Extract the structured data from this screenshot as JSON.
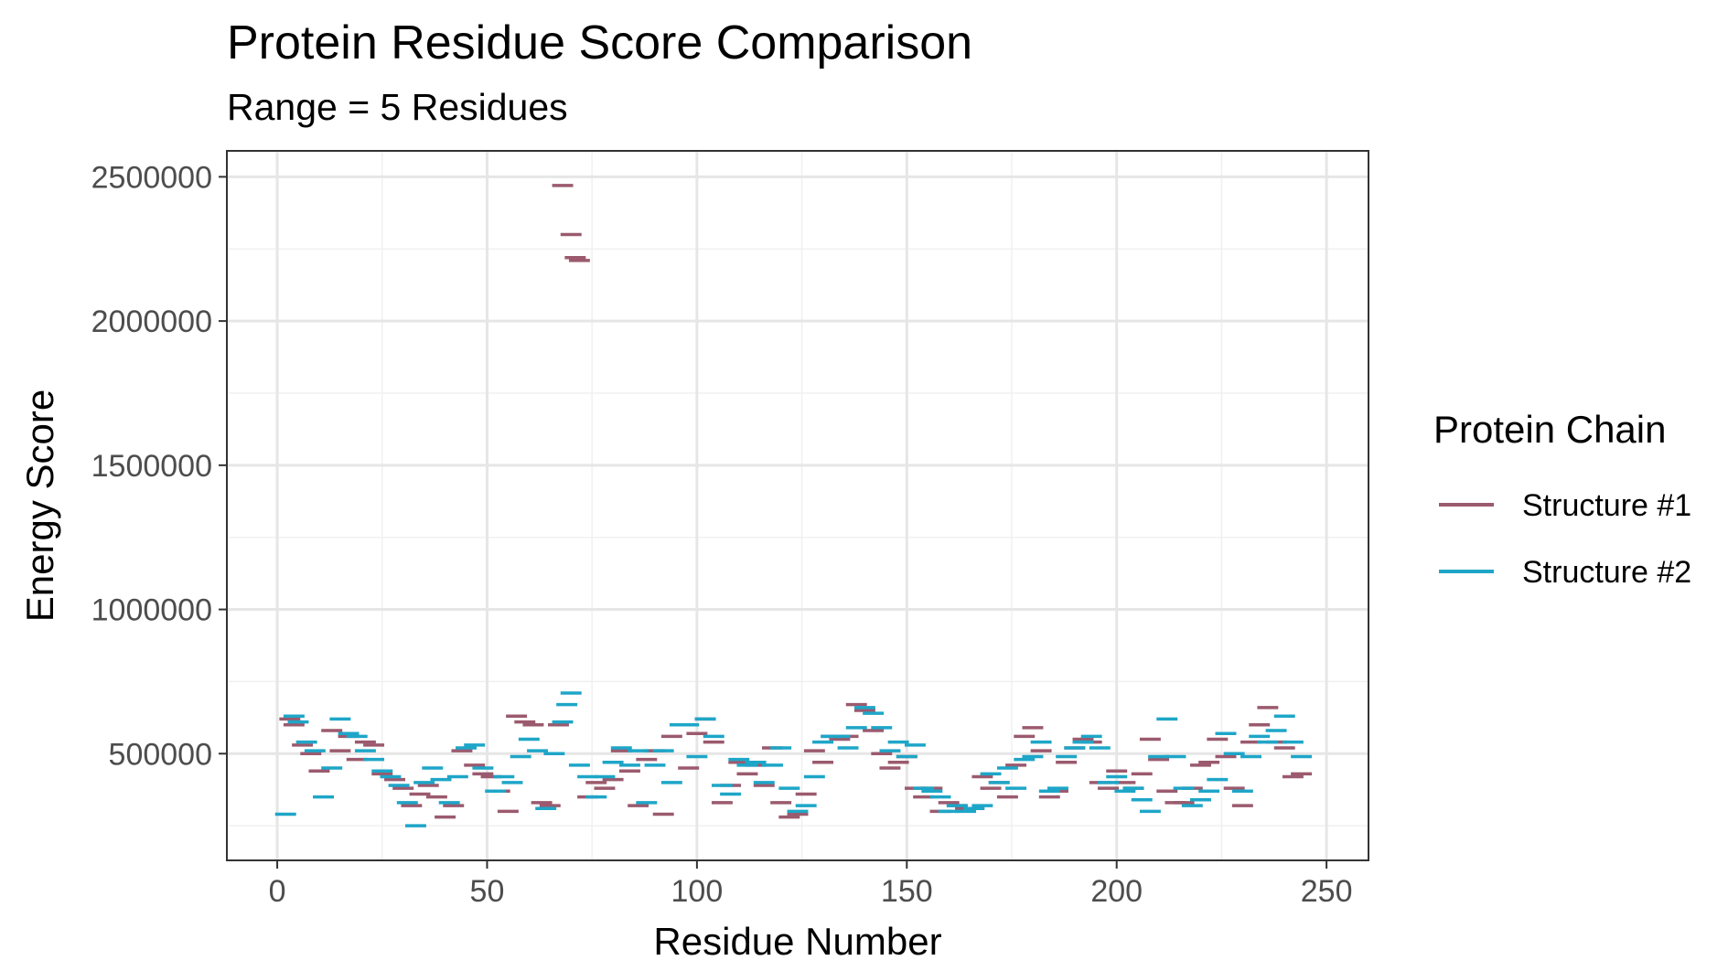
{
  "chart_data": {
    "type": "scatter",
    "title": "Protein Residue Score Comparison",
    "subtitle": "Range = 5 Residues",
    "xlabel": "Residue Number",
    "ylabel": "Energy Score",
    "xlim": [
      -12,
      260
    ],
    "ylim": [
      130000,
      2590000
    ],
    "x_ticks": [
      0,
      50,
      100,
      150,
      200,
      250
    ],
    "x_tick_labels": [
      "0",
      "50",
      "100",
      "150",
      "200",
      "250"
    ],
    "y_ticks": [
      500000,
      1000000,
      1500000,
      2000000,
      2500000
    ],
    "y_tick_labels": [
      "500000",
      "1000000",
      "1500000",
      "2000000",
      "2500000"
    ],
    "grid": true,
    "legend_title": "Protein Chain",
    "legend_position": "right",
    "mark_width_residues": 5,
    "series": [
      {
        "name": "Structure #1",
        "color": "#9b5a6e",
        "x": [
          3,
          4,
          6,
          8,
          10,
          13,
          15,
          17,
          19,
          21,
          23,
          25,
          28,
          30,
          32,
          34,
          36,
          38,
          40,
          42,
          44,
          47,
          49,
          51,
          53,
          55,
          57,
          59,
          61,
          63,
          65,
          67,
          68,
          70,
          71,
          72,
          74,
          76,
          78,
          80,
          82,
          84,
          86,
          88,
          90,
          92,
          94,
          96,
          98,
          100,
          102,
          104,
          106,
          108,
          110,
          112,
          114,
          116,
          118,
          120,
          122,
          124,
          126,
          128,
          130,
          132,
          134,
          136,
          138,
          140,
          142,
          144,
          146,
          148,
          150,
          152,
          154,
          156,
          158,
          160,
          162,
          164,
          166,
          168,
          170,
          172,
          174,
          176,
          178,
          180,
          182,
          184,
          186,
          188,
          190,
          192,
          194,
          196,
          198,
          200,
          202,
          204,
          206,
          208,
          210,
          212,
          214,
          216,
          218,
          220,
          222,
          224,
          226,
          228,
          230,
          232,
          234,
          236,
          238,
          240,
          242,
          244
        ],
        "values": [
          620000,
          600000,
          530000,
          500000,
          440000,
          580000,
          510000,
          560000,
          480000,
          540000,
          530000,
          430000,
          410000,
          380000,
          320000,
          360000,
          390000,
          350000,
          280000,
          320000,
          510000,
          460000,
          430000,
          420000,
          370000,
          300000,
          630000,
          610000,
          600000,
          330000,
          320000,
          600000,
          2470000,
          2300000,
          2220000,
          2210000,
          350000,
          400000,
          380000,
          410000,
          510000,
          440000,
          320000,
          480000,
          510000,
          290000,
          560000,
          600000,
          450000,
          570000,
          620000,
          540000,
          330000,
          390000,
          470000,
          430000,
          460000,
          390000,
          520000,
          330000,
          280000,
          290000,
          360000,
          510000,
          470000,
          560000,
          550000,
          560000,
          670000,
          650000,
          580000,
          500000,
          450000,
          470000,
          490000,
          380000,
          350000,
          380000,
          300000,
          330000,
          320000,
          310000,
          310000,
          420000,
          380000,
          400000,
          350000,
          460000,
          560000,
          590000,
          510000,
          350000,
          370000,
          470000,
          520000,
          550000,
          540000,
          400000,
          380000,
          440000,
          400000,
          380000,
          430000,
          550000,
          480000,
          370000,
          330000,
          330000,
          380000,
          460000,
          470000,
          550000,
          490000,
          380000,
          320000,
          540000,
          600000,
          660000,
          540000,
          520000,
          420000,
          430000
        ]
      },
      {
        "name": "Structure #2",
        "color": "#1ea6c8",
        "x": [
          2,
          4,
          5,
          7,
          9,
          11,
          13,
          15,
          17,
          19,
          21,
          23,
          25,
          27,
          29,
          31,
          33,
          35,
          37,
          39,
          41,
          43,
          45,
          47,
          49,
          52,
          54,
          56,
          58,
          60,
          62,
          64,
          66,
          68,
          69,
          70,
          72,
          74,
          76,
          78,
          80,
          82,
          84,
          86,
          88,
          90,
          92,
          94,
          96,
          98,
          100,
          102,
          104,
          106,
          108,
          110,
          112,
          114,
          116,
          118,
          120,
          122,
          124,
          126,
          128,
          130,
          132,
          134,
          136,
          138,
          140,
          142,
          144,
          146,
          148,
          150,
          152,
          154,
          156,
          158,
          160,
          162,
          164,
          166,
          168,
          170,
          172,
          174,
          176,
          178,
          180,
          182,
          184,
          186,
          188,
          190,
          192,
          194,
          196,
          198,
          200,
          202,
          204,
          206,
          208,
          210,
          212,
          214,
          216,
          218,
          220,
          222,
          224,
          226,
          228,
          230,
          232,
          234,
          236,
          238,
          240,
          242,
          244
        ],
        "values": [
          290000,
          630000,
          610000,
          540000,
          510000,
          350000,
          450000,
          620000,
          570000,
          560000,
          510000,
          480000,
          440000,
          420000,
          390000,
          330000,
          250000,
          400000,
          450000,
          410000,
          330000,
          420000,
          520000,
          530000,
          450000,
          370000,
          420000,
          400000,
          490000,
          550000,
          510000,
          310000,
          500000,
          610000,
          670000,
          710000,
          460000,
          420000,
          350000,
          420000,
          470000,
          520000,
          460000,
          510000,
          330000,
          460000,
          510000,
          400000,
          600000,
          600000,
          490000,
          620000,
          560000,
          390000,
          360000,
          480000,
          460000,
          470000,
          400000,
          460000,
          520000,
          380000,
          300000,
          320000,
          420000,
          540000,
          560000,
          560000,
          520000,
          590000,
          660000,
          640000,
          590000,
          510000,
          540000,
          490000,
          530000,
          380000,
          370000,
          350000,
          300000,
          320000,
          300000,
          310000,
          320000,
          430000,
          400000,
          450000,
          380000,
          480000,
          490000,
          540000,
          370000,
          380000,
          490000,
          520000,
          540000,
          560000,
          520000,
          400000,
          420000,
          370000,
          380000,
          340000,
          300000,
          490000,
          620000,
          490000,
          380000,
          320000,
          340000,
          370000,
          410000,
          570000,
          500000,
          370000,
          490000,
          560000,
          540000,
          580000,
          630000,
          540000,
          490000
        ]
      }
    ]
  }
}
